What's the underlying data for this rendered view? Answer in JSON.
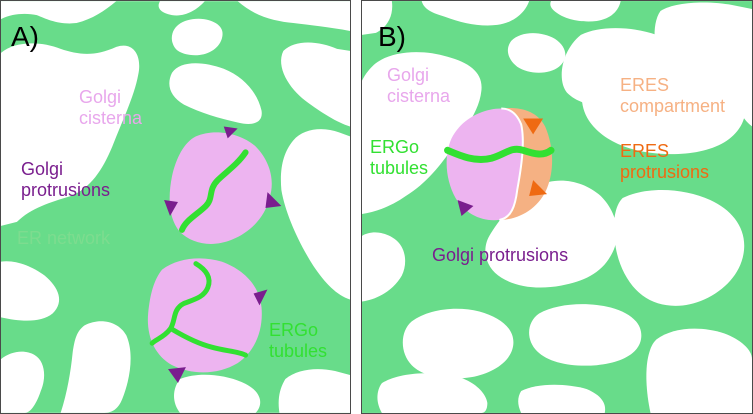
{
  "colors": {
    "er_network": "#68dc8a",
    "golgi_cisterna": "#edb4f0",
    "ergo_tubules": "#32e032",
    "golgi_protrusions": "#7a1e8e",
    "eres_compartment": "#f5b183",
    "eres_protrusions": "#ef6a12",
    "background": "#ffffff",
    "panel_border": "#4a4a4a"
  },
  "panel_a": {
    "label": "A)",
    "golgi_cisterna": "Golgi\ncisterna",
    "golgi_protrusions": "Golgi\nprotrusions",
    "er_network": "ER network",
    "ergo_tubules": "ERGo\ntubules"
  },
  "panel_b": {
    "label": "B)",
    "golgi_cisterna": "Golgi\ncisterna",
    "eres_compartment": "ERES\ncompartment",
    "ergo_tubules": "ERGo\ntubules",
    "eres_protrusions": "ERES\nprotrusions",
    "golgi_protrusions": "Golgi protrusions"
  }
}
